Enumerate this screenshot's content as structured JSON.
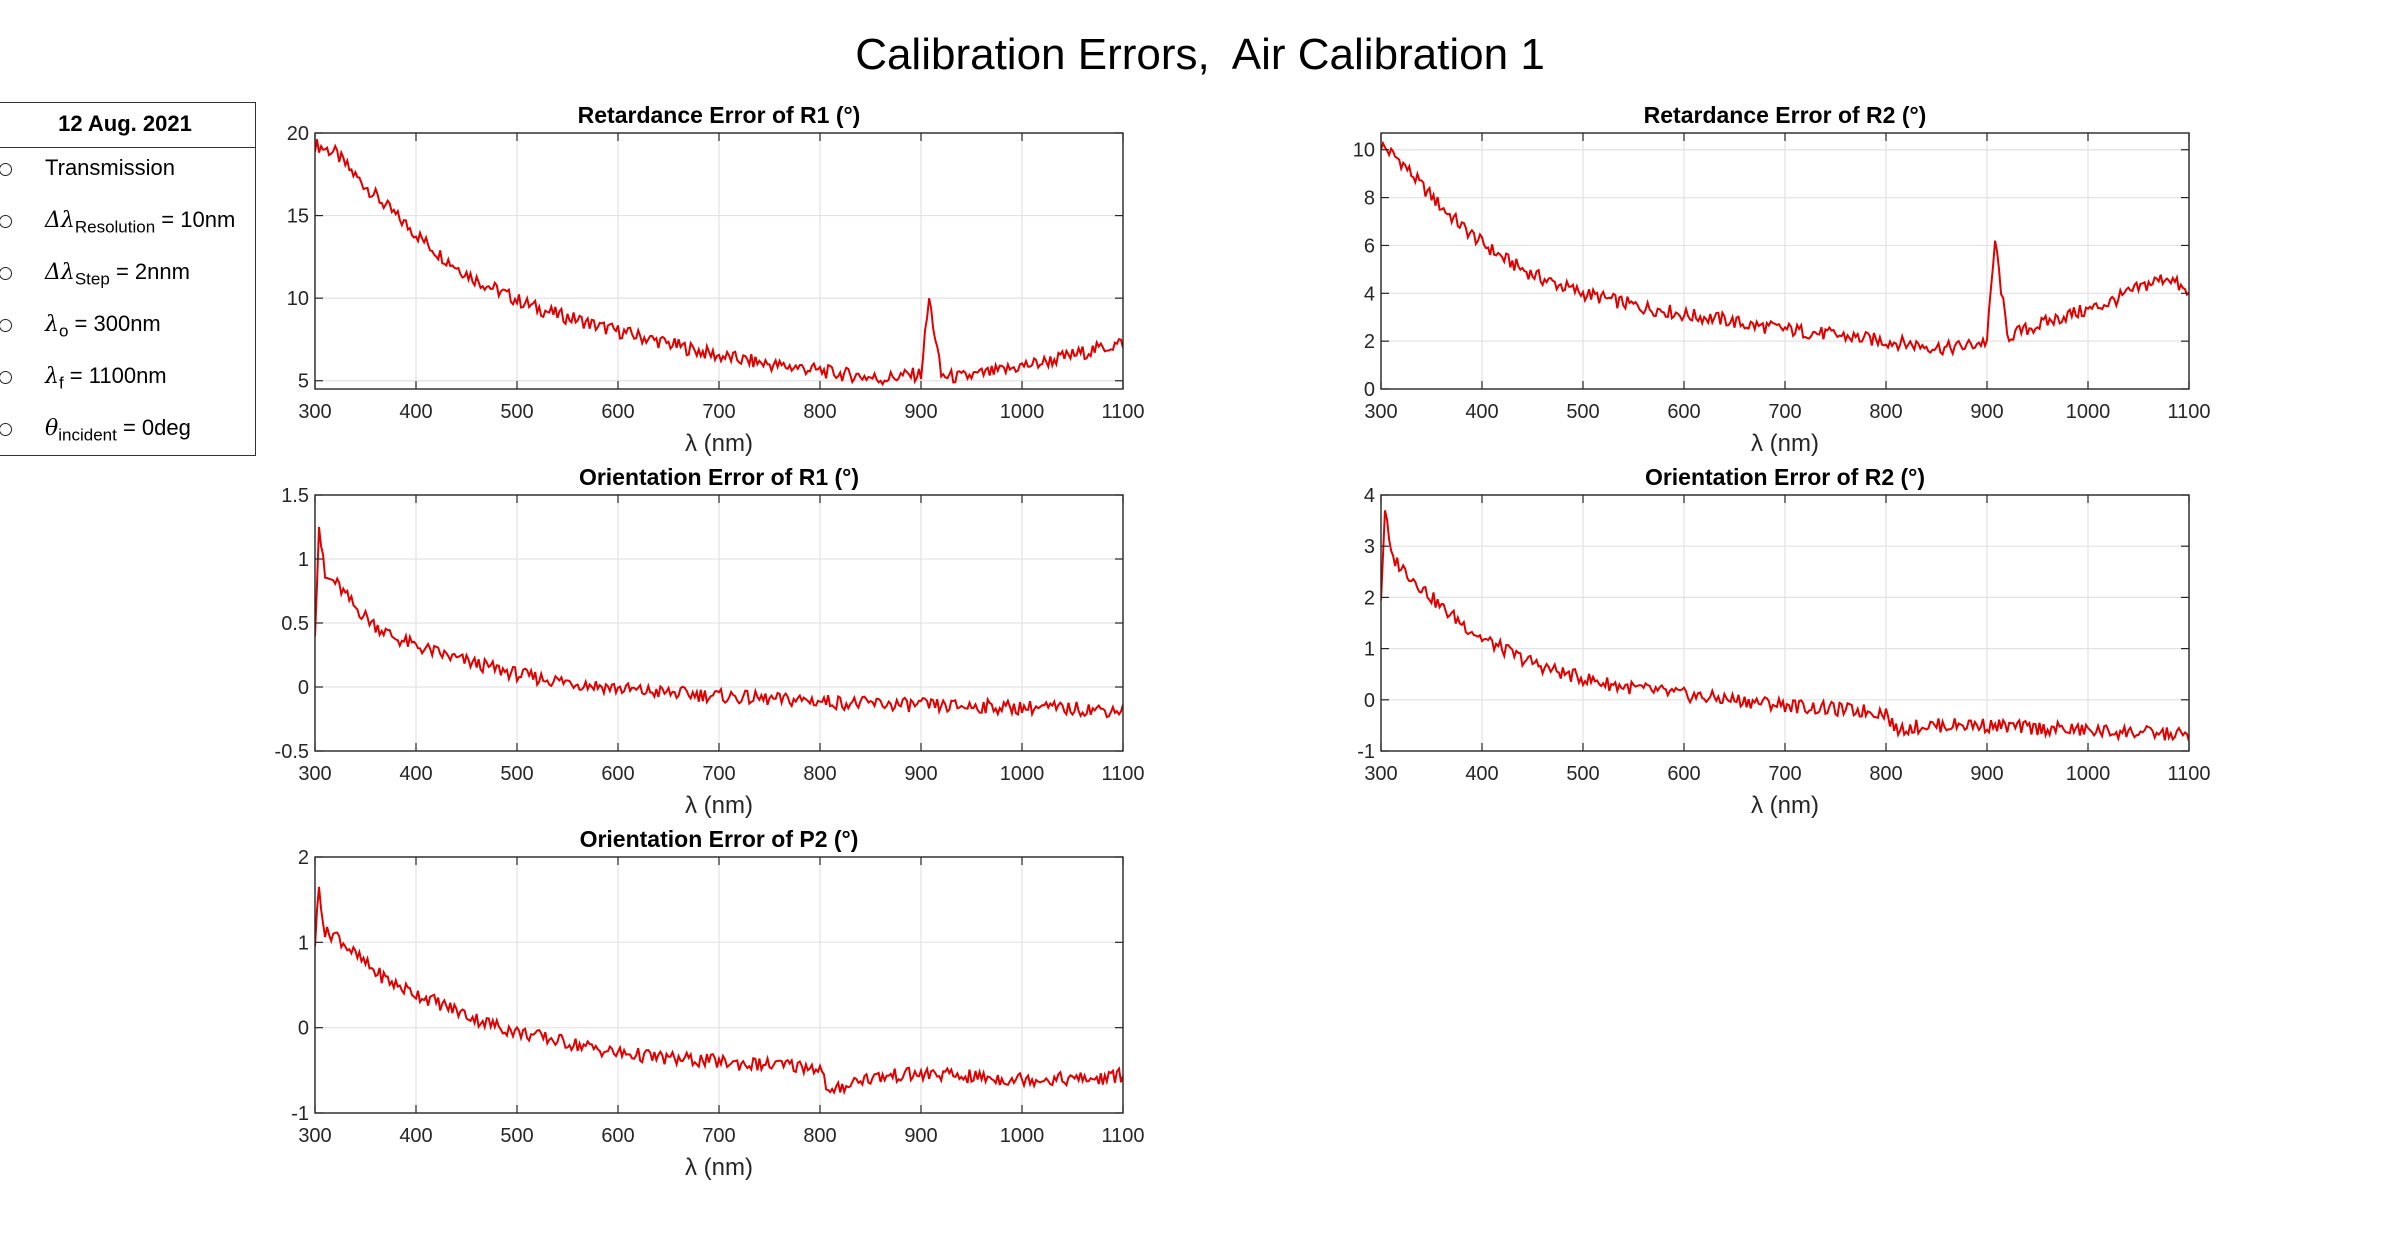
{
  "figure": {
    "title": "Calibration Errors,  Air Calibration 1",
    "line_color": "#e00000"
  },
  "legend": {
    "title": "12 Aug. 2021",
    "items": [
      {
        "symbol": "",
        "sub": "",
        "suffix": "Transmission"
      },
      {
        "symbol": "Δλ",
        "sub": "Resolution",
        "suffix": " = 10nm"
      },
      {
        "symbol": "Δλ",
        "sub": "Step",
        "suffix": " = 2nnm"
      },
      {
        "symbol": "λ",
        "sub": "o",
        "suffix": " = 300nm"
      },
      {
        "symbol": "λ",
        "sub": "f",
        "suffix": " = 1100nm"
      },
      {
        "symbol": "θ",
        "sub": "incident",
        "suffix": " = 0deg"
      }
    ]
  },
  "chart_data": [
    {
      "type": "line",
      "title": "Retardance Error of R1 (°)",
      "xlabel": "λ (nm)",
      "xlim": [
        300,
        1100
      ],
      "xticks": [
        300,
        400,
        500,
        600,
        700,
        800,
        900,
        1000,
        1100
      ],
      "ylim": [
        4.5,
        20
      ],
      "yticks": [
        5,
        10,
        15,
        20
      ],
      "grid": true,
      "series": [
        {
          "x": [
            300,
            320,
            340,
            360,
            380,
            400,
            420,
            440,
            460,
            480,
            500,
            520,
            540,
            560,
            580,
            600,
            620,
            640,
            660,
            680,
            700,
            720,
            740,
            760,
            780,
            800,
            820,
            840,
            860,
            880,
            900,
            908,
            920,
            940,
            960,
            980,
            1000,
            1020,
            1040,
            1060,
            1080,
            1100
          ],
          "y": [
            19.3,
            18.8,
            17.4,
            16.2,
            15.0,
            13.9,
            12.8,
            11.9,
            11.1,
            10.5,
            9.9,
            9.4,
            9.0,
            8.7,
            8.3,
            8.0,
            7.7,
            7.4,
            7.1,
            6.8,
            6.5,
            6.3,
            6.1,
            5.9,
            5.8,
            5.6,
            5.4,
            5.3,
            5.1,
            5.3,
            5.4,
            10.0,
            5.3,
            5.2,
            5.4,
            5.6,
            5.9,
            6.1,
            6.4,
            6.7,
            7.0,
            7.3
          ]
        }
      ]
    },
    {
      "type": "line",
      "title": "Retardance Error of R2 (°)",
      "xlabel": "λ (nm)",
      "xlim": [
        300,
        1100
      ],
      "xticks": [
        300,
        400,
        500,
        600,
        700,
        800,
        900,
        1000,
        1100
      ],
      "ylim": [
        0,
        10.7
      ],
      "yticks": [
        0,
        2,
        4,
        6,
        8,
        10
      ],
      "grid": true,
      "series": [
        {
          "x": [
            300,
            320,
            340,
            360,
            380,
            400,
            420,
            440,
            460,
            480,
            500,
            520,
            540,
            560,
            580,
            600,
            620,
            640,
            660,
            680,
            700,
            720,
            740,
            760,
            780,
            800,
            820,
            840,
            860,
            880,
            900,
            908,
            920,
            940,
            960,
            980,
            1000,
            1020,
            1040,
            1060,
            1080,
            1100
          ],
          "y": [
            10.2,
            9.5,
            8.5,
            7.6,
            6.8,
            6.1,
            5.5,
            5.0,
            4.6,
            4.3,
            4.0,
            3.8,
            3.6,
            3.4,
            3.3,
            3.1,
            3.0,
            2.9,
            2.7,
            2.6,
            2.5,
            2.4,
            2.3,
            2.2,
            2.1,
            2.0,
            1.9,
            1.8,
            1.7,
            1.8,
            2.0,
            6.2,
            2.2,
            2.5,
            2.8,
            3.1,
            3.3,
            3.6,
            4.0,
            4.4,
            4.7,
            3.9
          ]
        }
      ]
    },
    {
      "type": "line",
      "title": "Orientation Error of R1 (°)",
      "xlabel": "λ (nm)",
      "xlim": [
        300,
        1100
      ],
      "xticks": [
        300,
        400,
        500,
        600,
        700,
        800,
        900,
        1000,
        1100
      ],
      "ylim": [
        -0.5,
        1.5
      ],
      "yticks": [
        -0.5,
        0,
        0.5,
        1,
        1.5
      ],
      "grid": true,
      "series": [
        {
          "x": [
            300,
            304,
            310,
            320,
            340,
            360,
            380,
            400,
            420,
            440,
            460,
            480,
            500,
            520,
            540,
            560,
            580,
            600,
            620,
            640,
            660,
            680,
            700,
            720,
            740,
            760,
            780,
            800,
            820,
            840,
            860,
            880,
            900,
            920,
            940,
            960,
            980,
            1000,
            1020,
            1040,
            1060,
            1080,
            1100
          ],
          "y": [
            0.45,
            1.25,
            0.85,
            0.82,
            0.62,
            0.48,
            0.38,
            0.32,
            0.27,
            0.22,
            0.18,
            0.14,
            0.1,
            0.07,
            0.05,
            0.03,
            0.01,
            -0.01,
            -0.03,
            -0.04,
            -0.05,
            -0.06,
            -0.07,
            -0.08,
            -0.09,
            -0.1,
            -0.1,
            -0.11,
            -0.12,
            -0.13,
            -0.13,
            -0.14,
            -0.14,
            -0.15,
            -0.15,
            -0.15,
            -0.16,
            -0.16,
            -0.16,
            -0.17,
            -0.17,
            -0.18,
            -0.18
          ]
        }
      ]
    },
    {
      "type": "line",
      "title": "Orientation Error of R2 (°)",
      "xlabel": "λ (nm)",
      "xlim": [
        300,
        1100
      ],
      "xticks": [
        300,
        400,
        500,
        600,
        700,
        800,
        900,
        1000,
        1100
      ],
      "ylim": [
        -1,
        4
      ],
      "yticks": [
        -1,
        0,
        1,
        2,
        3,
        4
      ],
      "grid": true,
      "series": [
        {
          "x": [
            300,
            304,
            310,
            320,
            340,
            360,
            380,
            400,
            420,
            440,
            460,
            480,
            500,
            520,
            540,
            560,
            580,
            600,
            620,
            640,
            660,
            680,
            700,
            720,
            740,
            760,
            780,
            800,
            810,
            820,
            840,
            860,
            880,
            900,
            920,
            940,
            960,
            980,
            1000,
            1020,
            1040,
            1060,
            1080,
            1100
          ],
          "y": [
            2.0,
            3.7,
            2.8,
            2.6,
            2.2,
            1.8,
            1.5,
            1.2,
            1.0,
            0.8,
            0.65,
            0.52,
            0.42,
            0.33,
            0.26,
            0.2,
            0.15,
            0.1,
            0.05,
            0.02,
            -0.02,
            -0.06,
            -0.1,
            -0.14,
            -0.17,
            -0.2,
            -0.22,
            -0.25,
            -0.6,
            -0.55,
            -0.5,
            -0.5,
            -0.48,
            -0.5,
            -0.52,
            -0.55,
            -0.56,
            -0.58,
            -0.6,
            -0.62,
            -0.63,
            -0.65,
            -0.67,
            -0.68
          ]
        }
      ]
    },
    {
      "type": "line",
      "title": "Orientation Error of P2 (°)",
      "xlabel": "λ (nm)",
      "xlim": [
        300,
        1100
      ],
      "xticks": [
        300,
        400,
        500,
        600,
        700,
        800,
        900,
        1000,
        1100
      ],
      "ylim": [
        -1,
        2
      ],
      "yticks": [
        -1,
        0,
        1,
        2
      ],
      "grid": true,
      "series": [
        {
          "x": [
            300,
            304,
            310,
            320,
            340,
            360,
            380,
            400,
            420,
            440,
            460,
            480,
            500,
            520,
            540,
            560,
            580,
            600,
            620,
            640,
            660,
            680,
            700,
            720,
            740,
            760,
            780,
            800,
            810,
            820,
            840,
            860,
            880,
            900,
            920,
            940,
            960,
            980,
            1000,
            1020,
            1040,
            1060,
            1080,
            1100
          ],
          "y": [
            1.0,
            1.65,
            1.1,
            1.1,
            0.85,
            0.65,
            0.5,
            0.4,
            0.3,
            0.2,
            0.1,
            0.02,
            -0.05,
            -0.1,
            -0.15,
            -0.2,
            -0.25,
            -0.3,
            -0.32,
            -0.35,
            -0.37,
            -0.38,
            -0.4,
            -0.42,
            -0.43,
            -0.44,
            -0.45,
            -0.47,
            -0.8,
            -0.7,
            -0.6,
            -0.58,
            -0.55,
            -0.55,
            -0.55,
            -0.57,
            -0.58,
            -0.6,
            -0.6,
            -0.6,
            -0.6,
            -0.6,
            -0.6,
            -0.55
          ]
        }
      ]
    }
  ]
}
